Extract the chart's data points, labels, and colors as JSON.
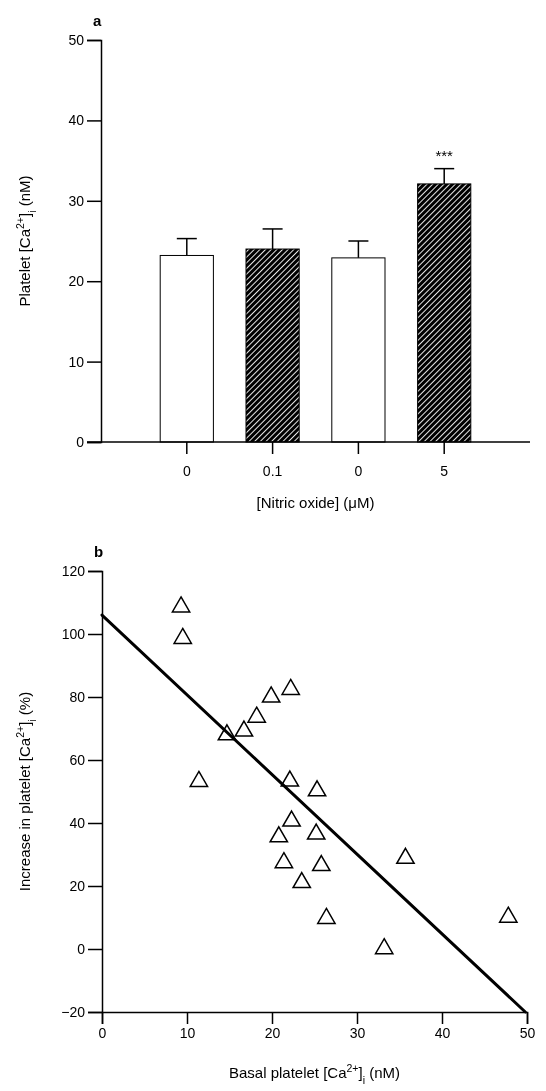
{
  "chart_data": [
    {
      "type": "bar",
      "title": "a",
      "xlabel": "[Nitric oxide] (μM)",
      "ylabel": "Platelet [Ca$^{2+}$]$_{i}$ (nM)",
      "categories": [
        "0",
        "0.1",
        "0",
        "5"
      ],
      "ylim": [
        0,
        50
      ],
      "yticks": [
        0,
        10,
        20,
        30,
        40,
        50
      ],
      "values": [
        23.2,
        24.0,
        22.9,
        32.1
      ],
      "colors": [
        "#ffffff",
        "#000000",
        "#ffffff",
        "#000000"
      ],
      "errors": [
        [
          23.2,
          25.3
        ],
        [
          24.0,
          26.5
        ],
        [
          22.9,
          25.0
        ],
        [
          32.1,
          34.0
        ]
      ],
      "annotations": [
        "***"
      ]
    },
    {
      "type": "scatter",
      "title": "b",
      "xlabel": "Basal platelet [Ca$^{2+}$]$_{i}$ (nM)",
      "ylabel": "Increase in platelet [Ca$^{2+}$]$_{i}$ (%)",
      "xlim": [
        0,
        50
      ],
      "xticks": [
        0,
        10,
        20,
        30,
        40,
        50
      ],
      "ylim": [
        -20,
        120
      ],
      "yticks": [
        -20,
        0,
        20,
        40,
        60,
        80,
        100,
        120
      ],
      "series": [
        {
          "type": "scatter",
          "marker": "triangle",
          "color": "#000000",
          "x": [
            9.3,
            9.5,
            11.4,
            14.7,
            16.7,
            18.2,
            19.9,
            22.2,
            22.1,
            25.3,
            22.3,
            20.8,
            25.2,
            21.4,
            25.8,
            23.5,
            26.4,
            33.2,
            35.7,
            47.8
          ],
          "values": [
            108.6,
            98.6,
            53.2,
            68.0,
            69.2,
            73.6,
            80.0,
            82.4,
            53.3,
            50.2,
            40.6,
            35.6,
            36.5,
            27.4,
            26.5,
            21.1,
            9.7,
            0.1,
            28.8,
            10.1
          ]
        },
        {
          "type": "line",
          "color": "#000000",
          "x": [
            0,
            49.8
          ],
          "values": [
            106,
            -20
          ]
        }
      ]
    }
  ]
}
